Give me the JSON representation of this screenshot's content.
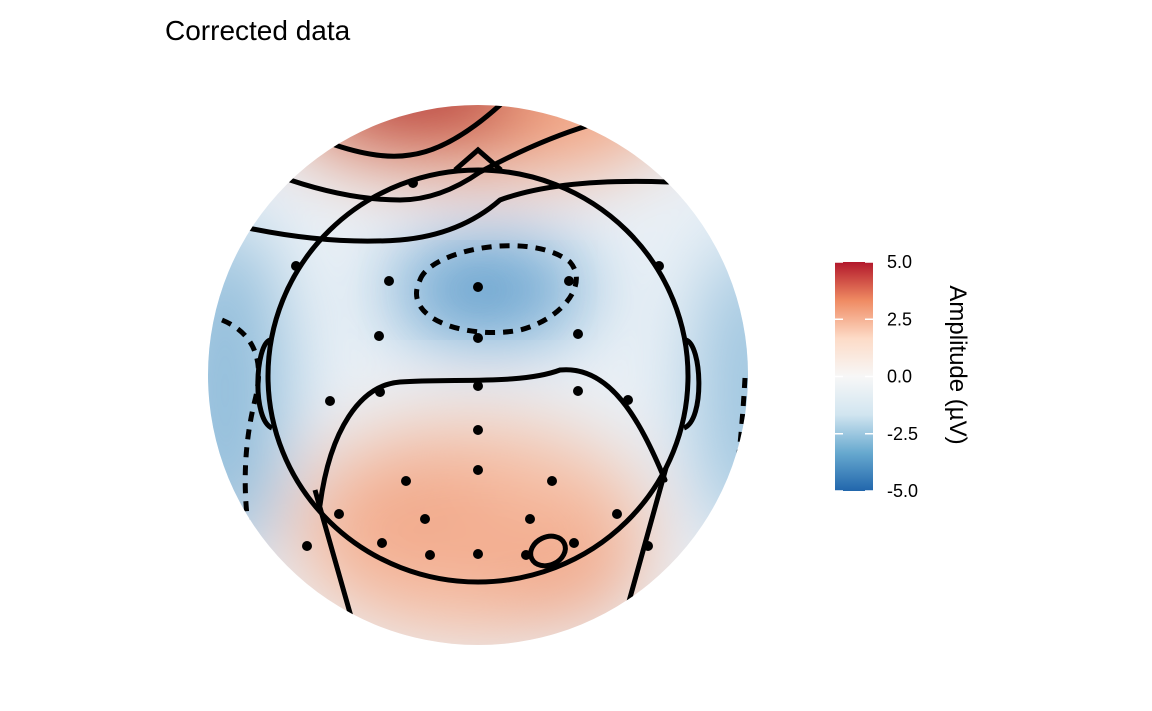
{
  "chart_data": {
    "type": "topography",
    "title": "Corrected data",
    "legend_title": "Amplitude (µV)",
    "colors": [
      "#b2182b",
      "#ef8a62",
      "#fddbc7",
      "#f7f7f7",
      "#d1e5f0",
      "#67a9cf",
      "#2166ac"
    ],
    "ylim": [
      -5,
      5
    ],
    "yticks": [
      {
        "value": 5,
        "label": "5.0"
      },
      {
        "value": 2.5,
        "label": "2.5"
      },
      {
        "value": 0,
        "label": "0.0"
      },
      {
        "value": -2.5,
        "label": "-2.5"
      },
      {
        "value": -5,
        "label": "-5.0"
      }
    ]
  }
}
